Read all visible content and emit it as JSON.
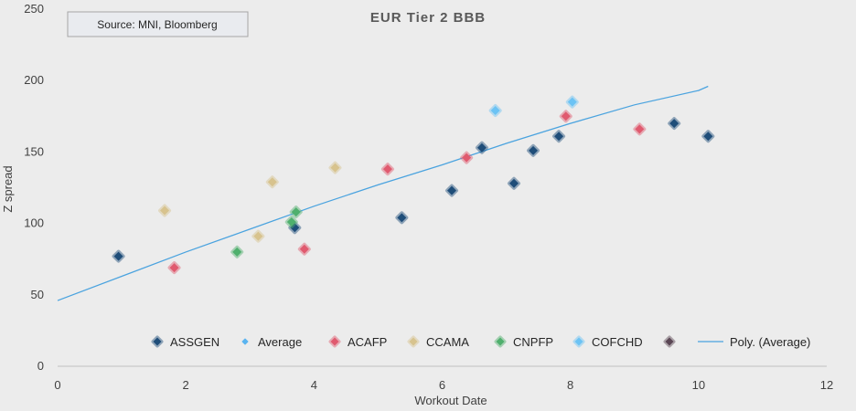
{
  "chart_data": {
    "type": "scatter",
    "title": "EUR Tier 2 BBB",
    "source_note": "Source: MNI, Bloomberg",
    "xlabel": "Workout Date",
    "ylabel": "Z spread",
    "xlim": [
      0,
      12
    ],
    "ylim": [
      0,
      250
    ],
    "xticks": [
      0,
      2,
      4,
      6,
      8,
      10,
      12
    ],
    "yticks": [
      0,
      50,
      100,
      150,
      200,
      250
    ],
    "grid": false,
    "legend_position": "bottom",
    "series": [
      {
        "name": "ASSGEN",
        "color": "#1f4e79",
        "marker": "diamond",
        "points": [
          [
            0.95,
            77
          ],
          [
            3.7,
            97
          ],
          [
            5.37,
            104
          ],
          [
            6.15,
            123
          ],
          [
            6.62,
            153
          ],
          [
            7.12,
            128
          ],
          [
            7.42,
            151
          ],
          [
            7.82,
            161
          ],
          [
            9.62,
            170
          ],
          [
            10.15,
            161
          ]
        ]
      },
      {
        "name": "Average",
        "color": "#5ab4f0",
        "marker": "small-diamond",
        "points": []
      },
      {
        "name": "ACAFP",
        "color": "#e05a6f",
        "marker": "diamond",
        "points": [
          [
            1.82,
            69
          ],
          [
            3.85,
            82
          ],
          [
            5.15,
            138
          ],
          [
            6.38,
            146
          ],
          [
            7.93,
            175
          ],
          [
            9.08,
            166
          ]
        ]
      },
      {
        "name": "CCAMA",
        "color": "#d8c38e",
        "marker": "diamond",
        "points": [
          [
            1.67,
            109
          ],
          [
            3.13,
            91
          ],
          [
            3.35,
            129
          ],
          [
            4.33,
            139
          ]
        ]
      },
      {
        "name": "CNPFP",
        "color": "#4fb06d",
        "marker": "diamond",
        "points": [
          [
            2.8,
            80
          ],
          [
            3.65,
            101
          ],
          [
            3.72,
            108
          ]
        ]
      },
      {
        "name": "COFCHD",
        "color": "#6cc3f5",
        "marker": "diamond",
        "points": [
          [
            6.83,
            179
          ],
          [
            8.03,
            185
          ]
        ]
      },
      {
        "name": "",
        "color": "#5a4655",
        "marker": "diamond",
        "points": []
      }
    ],
    "trendline": {
      "name": "Poly. (Average)",
      "color": "#4aa3df",
      "points": [
        [
          0,
          46
        ],
        [
          1,
          63
        ],
        [
          2,
          80
        ],
        [
          3,
          96
        ],
        [
          4,
          112
        ],
        [
          5,
          127
        ],
        [
          6,
          141
        ],
        [
          7,
          156
        ],
        [
          8,
          170
        ],
        [
          9,
          183
        ],
        [
          10,
          193
        ],
        [
          10.15,
          196
        ]
      ]
    }
  }
}
